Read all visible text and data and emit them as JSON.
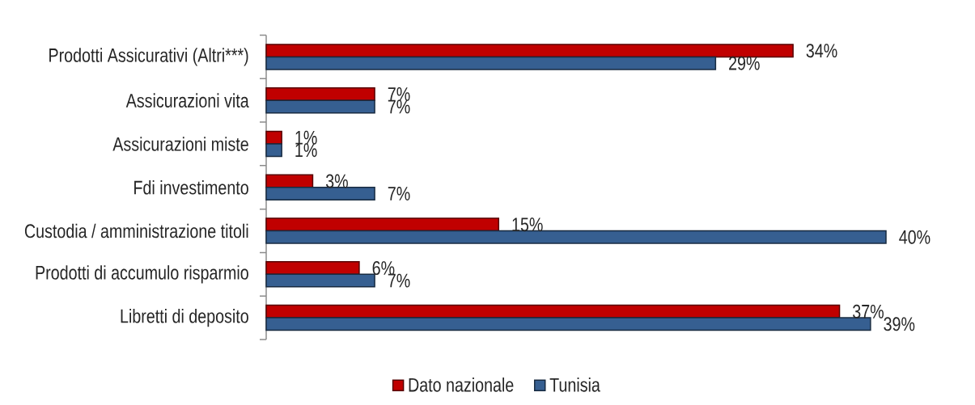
{
  "chart_data": {
    "type": "bar",
    "orientation": "horizontal",
    "categories": [
      "Prodotti Assicurativi (Altri***)",
      "Assicurazioni vita",
      "Assicurazioni miste",
      "Fdi investimento",
      "Custodia / amministrazione titoli",
      "Prodotti di accumulo risparmio",
      "Libretti di deposito"
    ],
    "series": [
      {
        "name": "Dato nazionale",
        "color": "#c00000",
        "values": [
          34,
          7,
          1,
          3,
          15,
          6,
          37
        ],
        "value_labels": [
          "34%",
          "7%",
          "1%",
          "3%",
          "15%",
          "6%",
          "37%"
        ]
      },
      {
        "name": "Tunisia",
        "color": "#365f91",
        "values": [
          29,
          7,
          1,
          7,
          40,
          7,
          39
        ],
        "value_labels": [
          "29%",
          "7%",
          "1%",
          "7%",
          "40%",
          "7%",
          "39%"
        ]
      }
    ],
    "tick_labels": "y",
    "legend": "bottom"
  }
}
